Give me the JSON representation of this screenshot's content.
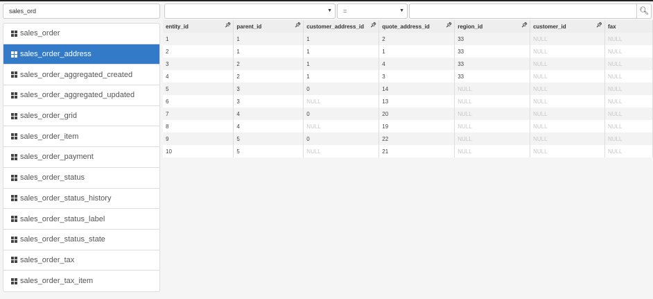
{
  "search": {
    "value": "sales_ord"
  },
  "filter": {
    "column": "",
    "operator": "=",
    "value": "",
    "search_icon": "search-icon"
  },
  "tables": [
    "sales_order",
    "sales_order_address",
    "sales_order_aggregated_created",
    "sales_order_aggregated_updated",
    "sales_order_grid",
    "sales_order_item",
    "sales_order_payment",
    "sales_order_status",
    "sales_order_status_history",
    "sales_order_status_label",
    "sales_order_status_state",
    "sales_order_tax",
    "sales_order_tax_item"
  ],
  "active_table": "sales_order_address",
  "accent": "#337ac8",
  "columns": [
    "entity_id",
    "parent_id",
    "customer_address_id",
    "quote_address_id",
    "region_id",
    "customer_id",
    "fax"
  ],
  "rows": [
    [
      "1",
      "1",
      "1",
      "2",
      "33",
      "NULL",
      "NULL"
    ],
    [
      "2",
      "1",
      "1",
      "1",
      "33",
      "NULL",
      "NULL"
    ],
    [
      "3",
      "2",
      "1",
      "4",
      "33",
      "NULL",
      "NULL"
    ],
    [
      "4",
      "2",
      "1",
      "3",
      "33",
      "NULL",
      "NULL"
    ],
    [
      "5",
      "3",
      "0",
      "14",
      "NULL",
      "NULL",
      "NULL"
    ],
    [
      "6",
      "3",
      "NULL",
      "13",
      "NULL",
      "NULL",
      "NULL"
    ],
    [
      "7",
      "4",
      "0",
      "20",
      "NULL",
      "NULL",
      "NULL"
    ],
    [
      "8",
      "4",
      "NULL",
      "19",
      "NULL",
      "NULL",
      "NULL"
    ],
    [
      "9",
      "5",
      "0",
      "22",
      "NULL",
      "NULL",
      "NULL"
    ],
    [
      "10",
      "5",
      "NULL",
      "21",
      "NULL",
      "NULL",
      "NULL"
    ]
  ]
}
